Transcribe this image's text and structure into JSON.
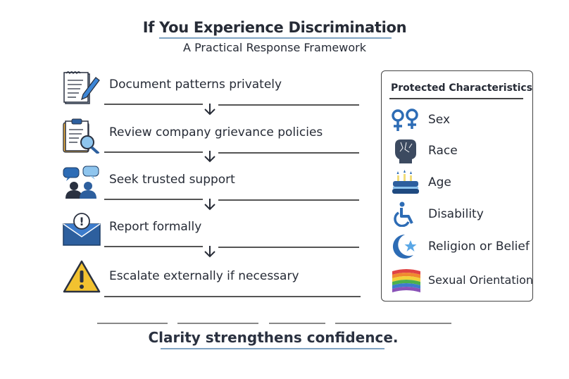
{
  "header": {
    "title": "If You Experience Discrimination",
    "subtitle": "A Practical Response Framework"
  },
  "steps": [
    {
      "label": "Document patterns privately",
      "icon": "notepad-pencil-icon"
    },
    {
      "label": "Review company grievance policies",
      "icon": "clipboard-magnifier-icon"
    },
    {
      "label": "Seek trusted support",
      "icon": "people-speech-bubbles-icon"
    },
    {
      "label": "Report formally",
      "icon": "envelope-alert-icon"
    },
    {
      "label": "Escalate externally if necessary",
      "icon": "warning-triangle-icon"
    }
  ],
  "protected": {
    "title": "Protected Characteristics",
    "items": [
      {
        "label": "Sex",
        "icon": "female-symbols-icon"
      },
      {
        "label": "Race",
        "icon": "raised-fist-icon"
      },
      {
        "label": "Age",
        "icon": "birthday-cake-icon"
      },
      {
        "label": "Disability",
        "icon": "wheelchair-icon"
      },
      {
        "label": "Religion or Belief",
        "icon": "crescent-star-icon"
      },
      {
        "label": "Sexual Orientation",
        "icon": "rainbow-flag-icon"
      }
    ]
  },
  "footer": {
    "slogan": "Clarity strengthens confidence."
  },
  "colors": {
    "accent": "#2d6cb5",
    "text": "#262b36",
    "warning": "#f2c230"
  }
}
